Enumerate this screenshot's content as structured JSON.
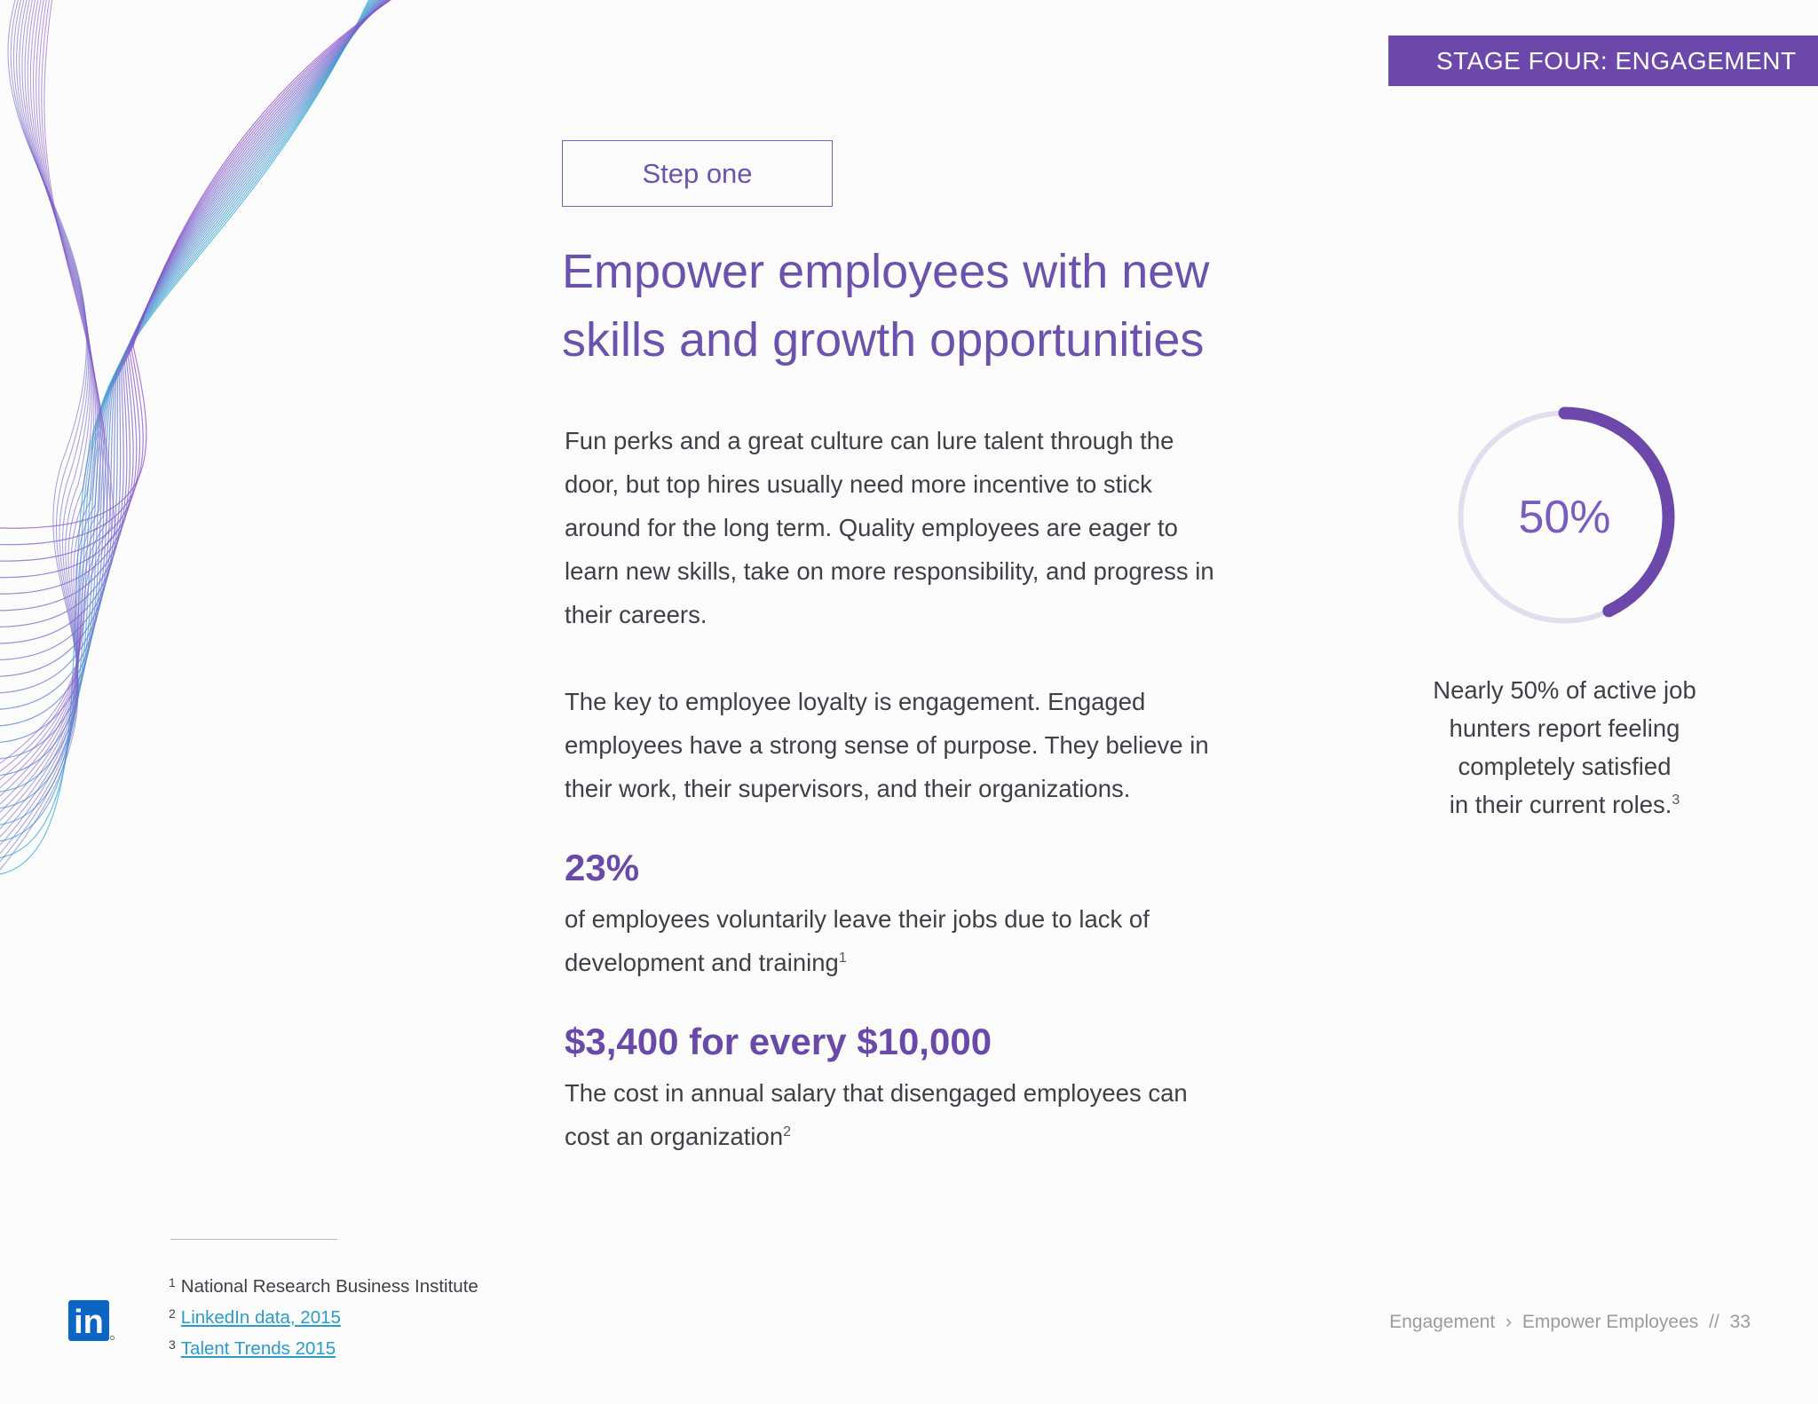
{
  "header": {
    "stage_banner": "STAGE FOUR: ENGAGEMENT"
  },
  "step_label": "Step one",
  "headline_line1": "Empower employees with new",
  "headline_line2": "skills and growth opportunities",
  "body": {
    "para1": "Fun perks and a great culture can lure talent through the door, but top hires usually need more incentive to stick around for the long term. Quality employees are eager to learn new skills, take on more responsibility, and progress in their careers.",
    "para2": "The key to employee loyalty is engagement. Engaged employees have a strong sense of purpose. They believe in their work, their supervisors, and their organizations."
  },
  "stats": [
    {
      "number": "23%",
      "desc": "of employees voluntarily leave their jobs due to lack of development and training",
      "ref": "1"
    },
    {
      "number": "$3,400 for every $10,000",
      "desc": "The cost in annual salary that disengaged employees can cost an organization",
      "ref": "2"
    }
  ],
  "side_stat": {
    "value_label": "50%",
    "fraction": 0.5,
    "caption_lines": [
      "Nearly 50% of active job",
      "hunters report feeling",
      "completely satisfied",
      "in their current roles."
    ],
    "ref": "3",
    "accent_color": "#6b48aa",
    "track_color": "#e2def0"
  },
  "footnotes": [
    {
      "num": "1",
      "text": "National Research Business Institute",
      "is_link": false
    },
    {
      "num": "2",
      "text": "LinkedIn data, 2015",
      "is_link": true
    },
    {
      "num": "3",
      "text": "Talent Trends 2015",
      "is_link": true
    }
  ],
  "logo": {
    "text": "in",
    "icon": "linkedin-logo-icon",
    "color": "#0a66c2"
  },
  "footer": {
    "section": "Engagement",
    "separator": "›",
    "subsection": "Empower Employees",
    "divider": "//",
    "page_number": "33"
  },
  "colors": {
    "brand_purple": "#6b48aa",
    "link_blue": "#2a9cc6"
  }
}
